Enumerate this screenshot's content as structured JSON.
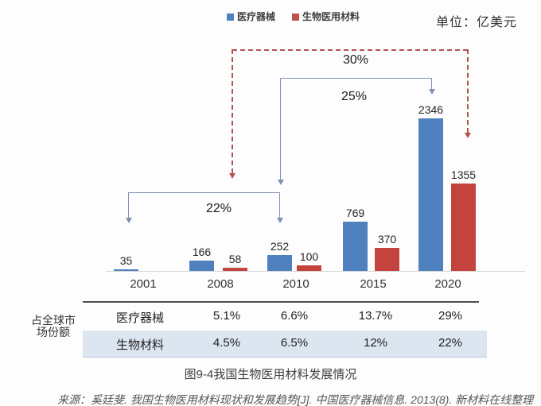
{
  "legend": {
    "items": [
      {
        "label": "医疗器械",
        "color": "#4e81bd"
      },
      {
        "label": "生物医用材料",
        "color": "#c0504d"
      }
    ]
  },
  "unit_label": "单位：亿美元",
  "chart_data": {
    "type": "bar",
    "title": "图9-4我国生物医用材料发展情况",
    "unit": "亿美元",
    "categories": [
      "2001",
      "2008",
      "2010",
      "2015",
      "2020"
    ],
    "series": [
      {
        "name": "医疗器械",
        "key": "medical-devices",
        "color": "#4e81bd",
        "values": [
          35,
          166,
          252,
          769,
          2346
        ]
      },
      {
        "name": "生物医用材料",
        "key": "biomaterials",
        "color": "#c5433f",
        "values": [
          null,
          58,
          100,
          370,
          1355
        ]
      }
    ],
    "annotations": [
      {
        "label": "22%",
        "from": "2001",
        "to": "2010",
        "series": "医疗器械",
        "style": "solid-blue-bracket"
      },
      {
        "label": "25%",
        "from": "2010",
        "to": "2020",
        "series": "医疗器械",
        "style": "solid-blue-bracket"
      },
      {
        "label": "30%",
        "from": "2008",
        "to": "2020",
        "series": "生物医用材料",
        "style": "dashed-red-bracket"
      }
    ],
    "ylim": [
      0,
      2500
    ],
    "grid": false,
    "legend_position": "top-center"
  },
  "table": {
    "row_header": "占全球市场份额",
    "row_header_lines": [
      "占全球市",
      "场份额"
    ],
    "rows": [
      {
        "label": "医疗器械",
        "values": [
          "5.1%",
          "6.6%",
          "13.7%",
          "29%"
        ]
      },
      {
        "label": "生物材料",
        "values": [
          "4.5%",
          "6.5%",
          "12%",
          "22%"
        ]
      }
    ]
  },
  "caption": "图9-4我国生物医用材料发展情况",
  "source": "来源：奚廷斐. 我国生物医用材料现状和发展趋势[J]. 中国医疗器械信息. 2013(8). 新材料在线整理",
  "colors": {
    "bar_blue": "#4e81bd",
    "bar_red": "#c5433f",
    "bracket_blue": "#8191b4",
    "bracket_red": "#b3534f",
    "table_row_bg": "#dce6f1"
  }
}
